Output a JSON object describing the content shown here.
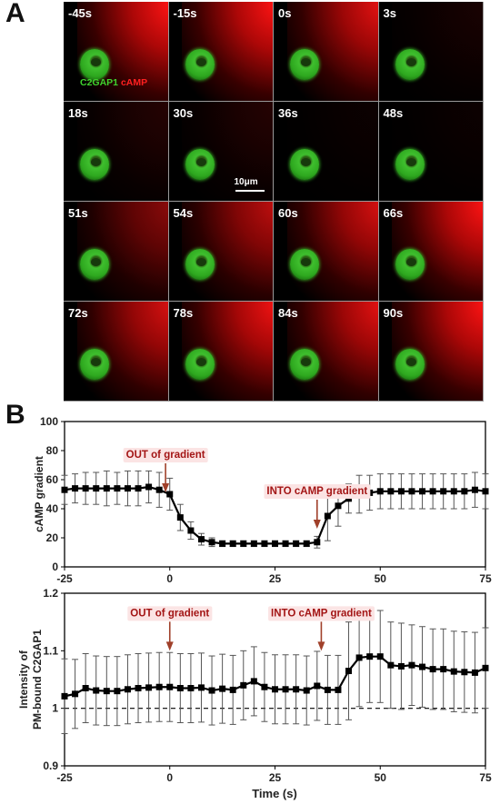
{
  "panel_a": {
    "label": "A",
    "timepoints": [
      "-45s",
      "-15s",
      "0s",
      "3s",
      "18s",
      "30s",
      "36s",
      "48s",
      "51s",
      "54s",
      "60s",
      "66s",
      "72s",
      "78s",
      "84s",
      "90s"
    ],
    "red_intensity": [
      1,
      1,
      0.9,
      0.1,
      0.15,
      0.15,
      0.05,
      0.05,
      0.55,
      0.75,
      0.85,
      1,
      0.85,
      0.95,
      0.9,
      1
    ],
    "legend_green": "C2GAP1",
    "legend_red": "cAMP",
    "scale_bar": "10μm",
    "colors": {
      "green": "#3fd32e",
      "red": "#ff2020"
    }
  },
  "panel_b": {
    "label": "B",
    "chart_data": [
      {
        "type": "line",
        "ylabel": "cAMP gradient",
        "xlabel": "",
        "xlim": [
          -25,
          75
        ],
        "ylim": [
          0,
          100
        ],
        "xticks": [
          "-25",
          "0",
          "25",
          "50",
          "75"
        ],
        "yticks": [
          "0",
          "20",
          "40",
          "60",
          "80",
          "100"
        ],
        "x": [
          -25,
          -22.5,
          -20,
          -17.5,
          -15,
          -12.5,
          -10,
          -7.5,
          -5,
          -2.5,
          0,
          2.5,
          5,
          7.5,
          10,
          12.5,
          15,
          17.5,
          20,
          22.5,
          25,
          27.5,
          30,
          32.5,
          35,
          37.5,
          40,
          42.5,
          45,
          47.5,
          50,
          52.5,
          55,
          57.5,
          60,
          62.5,
          65,
          67.5,
          70,
          72.5,
          75
        ],
        "y": [
          53,
          54,
          54,
          54,
          54,
          54,
          54,
          54,
          55,
          53,
          50,
          34,
          25,
          19,
          17,
          16,
          16,
          16,
          16,
          16,
          16,
          16,
          16,
          16,
          17,
          35,
          42,
          47,
          50,
          51,
          52,
          52,
          52,
          52,
          52,
          52,
          52,
          52,
          52,
          53,
          52
        ],
        "err": [
          10,
          10,
          11,
          11,
          12,
          11,
          12,
          12,
          11,
          12,
          11,
          9,
          6,
          4,
          3,
          2,
          2,
          2,
          2,
          2,
          2,
          2,
          2,
          2,
          4,
          17,
          14,
          10,
          13,
          12,
          12,
          12,
          12,
          12,
          12,
          12,
          12,
          12,
          12,
          12,
          12
        ],
        "annotations": [
          {
            "text": "OUT of gradient",
            "x": -1,
            "y": 75
          },
          {
            "text": "INTO cAMP gradient",
            "x": 35,
            "y": 50
          }
        ],
        "grid": false,
        "legend": "none"
      },
      {
        "type": "line",
        "ylabel_line1": "Intensity of",
        "ylabel_line2": "PM-bound C2GAP1",
        "xlabel": "Time (s)",
        "xlim": [
          -25,
          75
        ],
        "ylim": [
          0.9,
          1.2
        ],
        "xticks": [
          "-25",
          "0",
          "25",
          "50",
          "75"
        ],
        "yticks": [
          "0.9",
          "1",
          "1.1",
          "1.2"
        ],
        "baseline": 1.0,
        "x": [
          -25,
          -22.5,
          -20,
          -17.5,
          -15,
          -12.5,
          -10,
          -7.5,
          -5,
          -2.5,
          0,
          2.5,
          5,
          7.5,
          10,
          12.5,
          15,
          17.5,
          20,
          22.5,
          25,
          27.5,
          30,
          32.5,
          35,
          37.5,
          40,
          42.5,
          45,
          47.5,
          50,
          52.5,
          55,
          57.5,
          60,
          62.5,
          65,
          67.5,
          70,
          72.5,
          75
        ],
        "y": [
          1.021,
          1.025,
          1.035,
          1.031,
          1.03,
          1.03,
          1.033,
          1.035,
          1.036,
          1.037,
          1.037,
          1.035,
          1.035,
          1.036,
          1.031,
          1.034,
          1.032,
          1.04,
          1.047,
          1.037,
          1.033,
          1.033,
          1.033,
          1.031,
          1.039,
          1.032,
          1.032,
          1.065,
          1.088,
          1.09,
          1.09,
          1.075,
          1.073,
          1.075,
          1.072,
          1.068,
          1.068,
          1.064,
          1.063,
          1.062,
          1.07
        ],
        "err": [
          0.065,
          0.06,
          0.06,
          0.06,
          0.06,
          0.06,
          0.06,
          0.06,
          0.06,
          0.06,
          0.06,
          0.06,
          0.06,
          0.06,
          0.06,
          0.06,
          0.06,
          0.06,
          0.06,
          0.06,
          0.06,
          0.06,
          0.06,
          0.06,
          0.06,
          0.06,
          0.06,
          0.085,
          0.085,
          0.08,
          0.08,
          0.075,
          0.075,
          0.07,
          0.07,
          0.07,
          0.07,
          0.07,
          0.07,
          0.07,
          0.07
        ],
        "annotations": [
          {
            "text": "OUT of gradient",
            "x": 0,
            "y": 1.16
          },
          {
            "text": "INTO cAMP gradient",
            "x": 36,
            "y": 1.16
          }
        ],
        "grid": false,
        "legend": "none"
      }
    ]
  }
}
